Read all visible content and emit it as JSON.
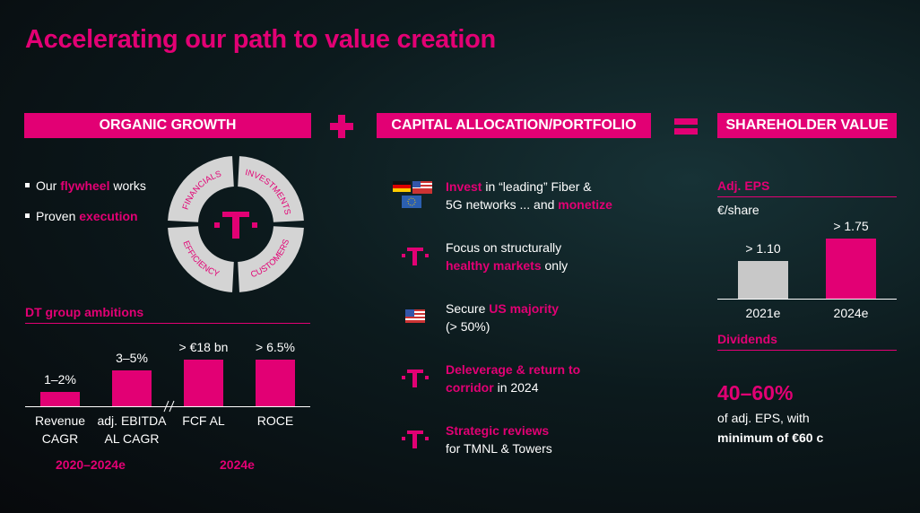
{
  "title": "Accelerating our path to value creation",
  "organic_growth": {
    "header": "ORGANIC GROWTH",
    "bullets": [
      [
        {
          "text": "Our "
        },
        {
          "text": "flywheel",
          "accent": true
        },
        {
          "text": " works"
        }
      ],
      [
        {
          "text": "Proven "
        },
        {
          "text": "execution",
          "accent": true
        }
      ]
    ],
    "flywheel": {
      "segments": [
        "FINANCIALS",
        "INVESTMENTS",
        "CUSTOMERS",
        "EFFICIENCY"
      ]
    },
    "ambitions": {
      "title": "DT group ambitions",
      "items": [
        {
          "value_label": "1–2%",
          "category": "Revenue CAGR"
        },
        {
          "value_label": "3–5%",
          "category": "adj. EBITDA AL CAGR"
        },
        {
          "value_label": "> €18 bn",
          "category": "FCF AL"
        },
        {
          "value_label": "> 6.5%",
          "category": "ROCE"
        }
      ],
      "groups": [
        "2020–2024e",
        "2024e"
      ]
    }
  },
  "capital_allocation": {
    "header": "CAPITAL ALLOCATION/PORTFOLIO",
    "items": [
      {
        "icon": "flags",
        "lines": [
          [
            {
              "text": "Invest",
              "accent": true
            },
            {
              "text": " in “leading” Fiber &"
            }
          ],
          [
            {
              "text": "5G networks ... and "
            },
            {
              "text": "monetize",
              "accent": true
            }
          ]
        ]
      },
      {
        "icon": "logo",
        "lines": [
          [
            {
              "text": "Focus on structurally"
            }
          ],
          [
            {
              "text": "healthy markets",
              "accent": true
            },
            {
              "text": " only"
            }
          ]
        ]
      },
      {
        "icon": "us",
        "lines": [
          [
            {
              "text": "Secure "
            },
            {
              "text": "US majority",
              "accent": true
            }
          ],
          [
            {
              "text": "(> 50%)"
            }
          ]
        ]
      },
      {
        "icon": "logo",
        "lines": [
          [
            {
              "text": "Deleverage & return to",
              "accent": true
            }
          ],
          [
            {
              "text": "corridor",
              "accent": true
            },
            {
              "text": " in 2024"
            }
          ]
        ]
      },
      {
        "icon": "logo",
        "lines": [
          [
            {
              "text": "Strategic reviews",
              "accent": true
            }
          ],
          [
            {
              "text": "for TMNL & Towers"
            }
          ]
        ]
      }
    ]
  },
  "shareholder_value": {
    "header": "SHAREHOLDER VALUE",
    "eps_title": "Adj. EPS",
    "eps_unit": "€/share",
    "eps_chart": {
      "type": "bar",
      "categories": [
        "2021e",
        "2024e"
      ],
      "values": [
        1.1,
        1.75
      ],
      "value_labels": [
        "> 1.10",
        "> 1.75"
      ],
      "colors": [
        "#c8c8c8",
        "#e20074"
      ]
    },
    "dividends_title": "Dividends",
    "dividend_range": "40–60%",
    "dividend_lines": [
      [
        {
          "text": "of adj. EPS, with"
        }
      ],
      [
        {
          "text": "minimum of €60 c",
          "bold": true
        }
      ]
    ]
  }
}
